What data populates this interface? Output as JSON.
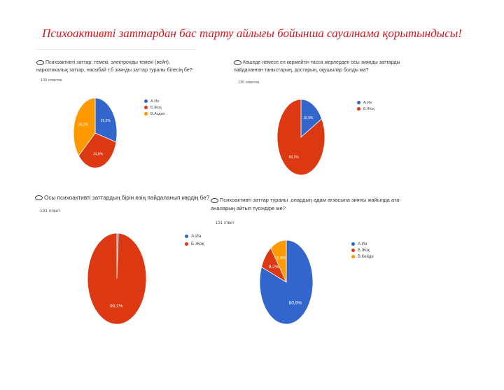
{
  "title": "Психоактивті заттардан бас тарту айлығы бойынша сауалнама қорытындысы!",
  "colors": {
    "blue": "#3366cc",
    "red": "#dc3912",
    "orange": "#ff9900"
  },
  "panels": [
    {
      "question": "Психоактивті заттар: темекі, электронды темекі (вейп), наркотикалық заттар, насыбай т.б зиянды заттар туралы білесің бе?",
      "responses": "130 ответов"
    },
    {
      "question": "Көшеде немесе ел көрмейтін тасса жерлерден осы зиянды заттарды пайдаланған таныстарың, достарың, оқушылар болды ма?",
      "responses": "130 ответов"
    },
    {
      "question": "Осы психоактивті заттардың бірін өзің пайдаланып көрдің бе?",
      "responses": "131 ответ"
    },
    {
      "question": "Психоактивті заттар туралы ,олардың адам ағзасына зияны жайында ата-аналарың айтып түсіндіре ме?",
      "responses": "131 ответ"
    }
  ],
  "chart_data": [
    {
      "type": "pie",
      "labels": [
        "А.Иә",
        "Б.Жоқ",
        "В.Аздап"
      ],
      "values": [
        29.2,
        34.6,
        36.2
      ],
      "value_labels": [
        "29,2%",
        "34,6%",
        "36,2%"
      ]
    },
    {
      "type": "pie",
      "labels": [
        "А.Иә",
        "Б.Жоқ"
      ],
      "values": [
        16.9,
        83.1
      ],
      "value_labels": [
        "16,9%",
        "83,1%"
      ]
    },
    {
      "type": "pie",
      "labels": [
        "А.Иә",
        "Б.Жоқ"
      ],
      "values": [
        0.8,
        99.2
      ],
      "value_labels": [
        "",
        "99,2%"
      ]
    },
    {
      "type": "pie",
      "labels": [
        "А.Иә",
        "Б.Жоқ",
        "В.Кейде"
      ],
      "values": [
        80.9,
        9.2,
        9.9
      ],
      "value_labels": [
        "80,9%",
        "9,2%",
        "9,9%"
      ]
    }
  ]
}
